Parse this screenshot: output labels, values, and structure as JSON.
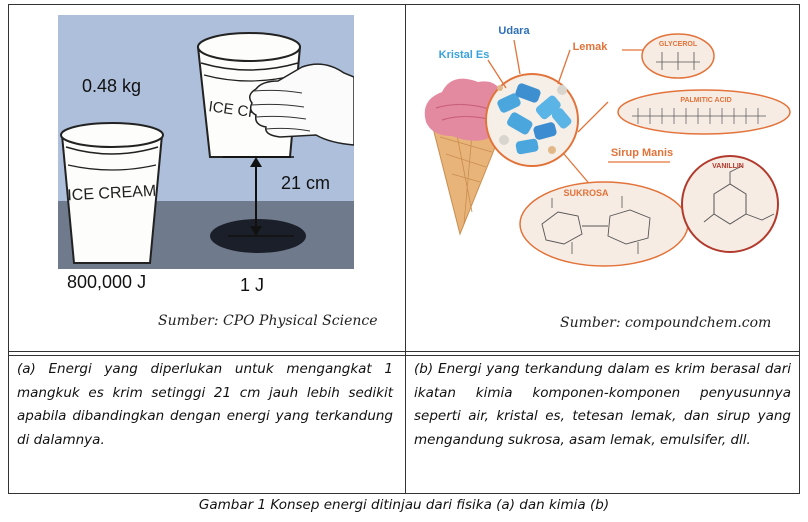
{
  "left_panel": {
    "mass_label": "0.48 kg",
    "distance_label": "21 cm",
    "energy_left": "800,000 J",
    "energy_right": "1 J",
    "cup_text": "ICE CREAM",
    "cup_text_partial": "ICE CR",
    "source": "Sumber: CPO Physical Science"
  },
  "right_panel": {
    "labels": {
      "udara": "Udara",
      "kristal_es": "Kristal Es",
      "lemak": "Lemak",
      "glycerol": "GLYCEROL",
      "palmitic_acid": "PALMITIC ACID",
      "sirup_manis": "Sirup Manis",
      "vanillin": "VANILLIN",
      "sukrosa": "SUKROSA"
    },
    "source": "Sumber: compoundchem.com"
  },
  "captions": {
    "a": "(a) Energi yang diperlukan untuk mengangkat 1 mangkuk es krim setinggi 21 cm jauh lebih sedikit apabila dibandingkan dengan energi yang terkandung di dalamnya.",
    "b": "(b) Energi yang terkandung dalam es krim berasal dari ikatan kimia komponen-komponen penyusunnya seperti air, kristal es, tetesan lemak, dan sirup yang mengandung sukrosa, asam lemak, emulsifer, dll."
  },
  "figure_caption": "Gambar 1 Konsep energi ditinjau dari fisika (a) dan kimia (b)",
  "colors": {
    "panel_bg": "#aebfdc",
    "floor": "#6f7a8c",
    "accent_orange": "#e2733a",
    "ice_blue": "#4aa6dd",
    "ice_cream_pink": "#e48aa0"
  }
}
